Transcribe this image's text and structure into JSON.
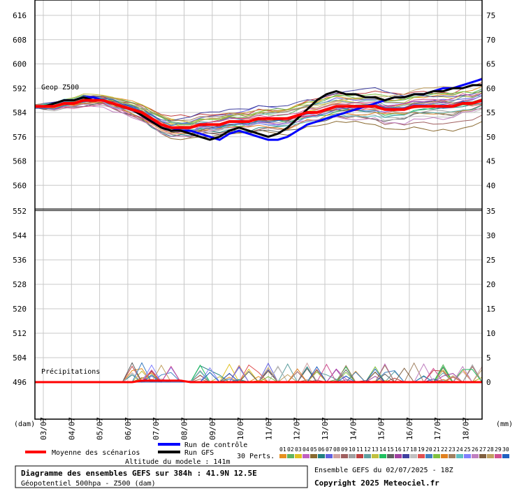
{
  "chart_data": {
    "type": "line",
    "top_panel": {
      "label": "Geop Z500",
      "left_unit": "",
      "left_ticks": [
        616,
        608,
        600,
        592,
        584,
        576,
        568,
        560
      ],
      "right_ticks": [
        75,
        70,
        65,
        60,
        55,
        50,
        45,
        40
      ],
      "ylim": [
        552,
        620
      ]
    },
    "bottom_panel": {
      "label": "Précipitations",
      "left_unit": "(dam)",
      "right_unit": "(mm)",
      "left_ticks": [
        552,
        544,
        536,
        528,
        520,
        512,
        504,
        496
      ],
      "right_ticks": [
        35,
        30,
        25,
        20,
        15,
        10,
        5,
        0
      ],
      "ylim": [
        0,
        35
      ]
    },
    "x_ticks": [
      "03/07",
      "04/07",
      "05/07",
      "06/07",
      "07/07",
      "08/07",
      "09/07",
      "10/07",
      "11/07",
      "12/07",
      "13/07",
      "14/07",
      "15/07",
      "16/07",
      "17/07",
      "18/07"
    ],
    "series": [
      {
        "name": "Moyenne des scénarios",
        "color": "#ff0000",
        "z500": [
          586,
          586,
          586,
          587,
          587,
          588,
          588,
          588,
          587,
          586,
          585,
          584,
          582,
          580,
          579,
          579,
          579,
          580,
          580,
          580,
          581,
          581,
          581,
          582,
          582,
          582,
          582,
          583,
          584,
          584,
          585,
          586,
          586,
          586,
          586,
          586,
          585,
          585,
          585,
          586,
          586,
          586,
          586,
          586,
          587,
          587,
          588
        ]
      },
      {
        "name": "Run de contrôle",
        "color": "#0000ff",
        "z500": [
          586,
          586,
          587,
          588,
          588,
          589,
          589,
          588,
          587,
          586,
          585,
          583,
          581,
          580,
          579,
          578,
          578,
          577,
          576,
          575,
          577,
          578,
          577,
          576,
          575,
          575,
          576,
          578,
          580,
          581,
          582,
          583,
          584,
          585,
          586,
          587,
          588,
          589,
          589,
          590,
          590,
          591,
          592,
          592,
          593,
          594,
          595
        ]
      },
      {
        "name": "Run GFS",
        "color": "#000000",
        "z500": [
          586,
          586,
          587,
          588,
          588,
          589,
          588,
          588,
          587,
          586,
          585,
          583,
          581,
          579,
          578,
          578,
          577,
          576,
          575,
          576,
          578,
          579,
          578,
          577,
          576,
          577,
          579,
          582,
          585,
          588,
          590,
          591,
          590,
          590,
          589,
          589,
          588,
          589,
          589,
          590,
          590,
          591,
          591,
          592,
          592,
          593,
          593
        ]
      }
    ],
    "footer": {
      "legend_mean": "Moyenne des scénarios",
      "legend_control": "Run de contrôle",
      "legend_gfs": "Run GFS",
      "perts_label": "30 Perts.",
      "pert_numbers": [
        "01",
        "02",
        "03",
        "04",
        "05",
        "06",
        "07",
        "08",
        "09",
        "10",
        "11",
        "12",
        "13",
        "14",
        "15",
        "16",
        "17",
        "18",
        "19",
        "20",
        "21",
        "22",
        "23",
        "24",
        "25",
        "26",
        "27",
        "28",
        "29",
        "30"
      ],
      "pert_colors": [
        "#e69020",
        "#5fb45f",
        "#e0c020",
        "#c060c0",
        "#8a6a30",
        "#208080",
        "#6060e0",
        "#d0a0a0",
        "#a06060",
        "#a0a0a0",
        "#c04040",
        "#60a0a0",
        "#c0c040",
        "#20c060",
        "#606060",
        "#a040a0",
        "#4040a0",
        "#c0c0c0",
        "#e05050",
        "#4080c0",
        "#80c040",
        "#e08020",
        "#a08060",
        "#60c0c0",
        "#8080ff",
        "#c080c0",
        "#806040",
        "#c0a060",
        "#d05090",
        "#2060c0"
      ],
      "altitude": "Altitude du modele : 141m",
      "title": "Diagramme des ensembles GEFS sur 384h : 41.9N 12.5E",
      "subtitle": "Géopotentiel 500hpa - Z500 (dam)",
      "run_info": "Ensemble GEFS du 02/07/2025 - 18Z",
      "copyright": "Copyright 2025 Meteociel.fr"
    }
  }
}
